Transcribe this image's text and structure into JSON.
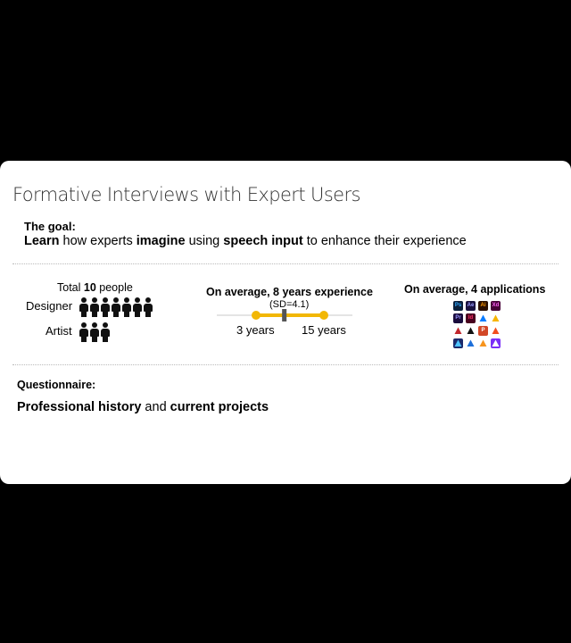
{
  "slide": {
    "title": "Formative Interviews with Expert Users",
    "goal": {
      "label": "The goal:",
      "w1": "Learn",
      "t1": " how experts ",
      "w2": "imagine",
      "t2": " using ",
      "w3": "speech input",
      "t3": " to enhance their experience"
    },
    "participants": {
      "total_prefix": "Total ",
      "total_count": "10",
      "total_suffix": " people",
      "designer_label": "Designer",
      "designer_count": 7,
      "artist_label": "Artist",
      "artist_count": 3
    },
    "experience": {
      "title": "On average, 8 years experience",
      "sd": "(SD=4.1)",
      "min_label": "3 years",
      "max_label": "15 years",
      "min_years": 3,
      "mean_years": 8,
      "max_years": 15,
      "bar_color": "#f2b705"
    },
    "applications": {
      "title": "On average, 4 applications",
      "icons": [
        {
          "name": "photoshop-icon",
          "text": "Ps",
          "bg": "#0a1f3c",
          "fg": "#31a8ff"
        },
        {
          "name": "after-effects-icon",
          "text": "Ae",
          "bg": "#1a1240",
          "fg": "#9999ff"
        },
        {
          "name": "illustrator-icon",
          "text": "Ai",
          "bg": "#2b0f00",
          "fg": "#ff9a00"
        },
        {
          "name": "xd-icon",
          "text": "Xd",
          "bg": "#470137",
          "fg": "#ff61f6"
        },
        {
          "name": "premiere-icon",
          "text": "Pr",
          "bg": "#1a0b3c",
          "fg": "#9999ff"
        },
        {
          "name": "indesign-icon",
          "text": "Id",
          "bg": "#49021f",
          "fg": "#ff3366"
        },
        {
          "name": "framer-icon",
          "text": "",
          "bg": "#ffffff",
          "fg": "#0a7cff"
        },
        {
          "name": "sketch-icon",
          "text": "",
          "bg": "#ffffff",
          "fg": "#f7b500"
        },
        {
          "name": "affinity-icon",
          "text": "",
          "bg": "#ffffff",
          "fg": "#c1272d"
        },
        {
          "name": "unity-icon",
          "text": "",
          "bg": "#ffffff",
          "fg": "#111111"
        },
        {
          "name": "powerpoint-icon",
          "text": "P",
          "bg": "#d24726",
          "fg": "#ffffff"
        },
        {
          "name": "figma-icon",
          "text": "",
          "bg": "#ffffff",
          "fg": "#f24e1e"
        },
        {
          "name": "affinity-designer-icon",
          "text": "",
          "bg": "#1b2a6b",
          "fg": "#4ec3ff"
        },
        {
          "name": "vectornator-icon",
          "text": "",
          "bg": "#ffffff",
          "fg": "#1e6fd9"
        },
        {
          "name": "procreate-icon",
          "text": "",
          "bg": "#ffffff",
          "fg": "#f7941d"
        },
        {
          "name": "app-icon-purple",
          "text": "",
          "bg": "#7b2ff7",
          "fg": "#ffffff"
        }
      ]
    },
    "questionnaire": {
      "label": "Questionnaire:",
      "w1": "Professional history",
      "t1": " and ",
      "w2": "current projects"
    }
  }
}
